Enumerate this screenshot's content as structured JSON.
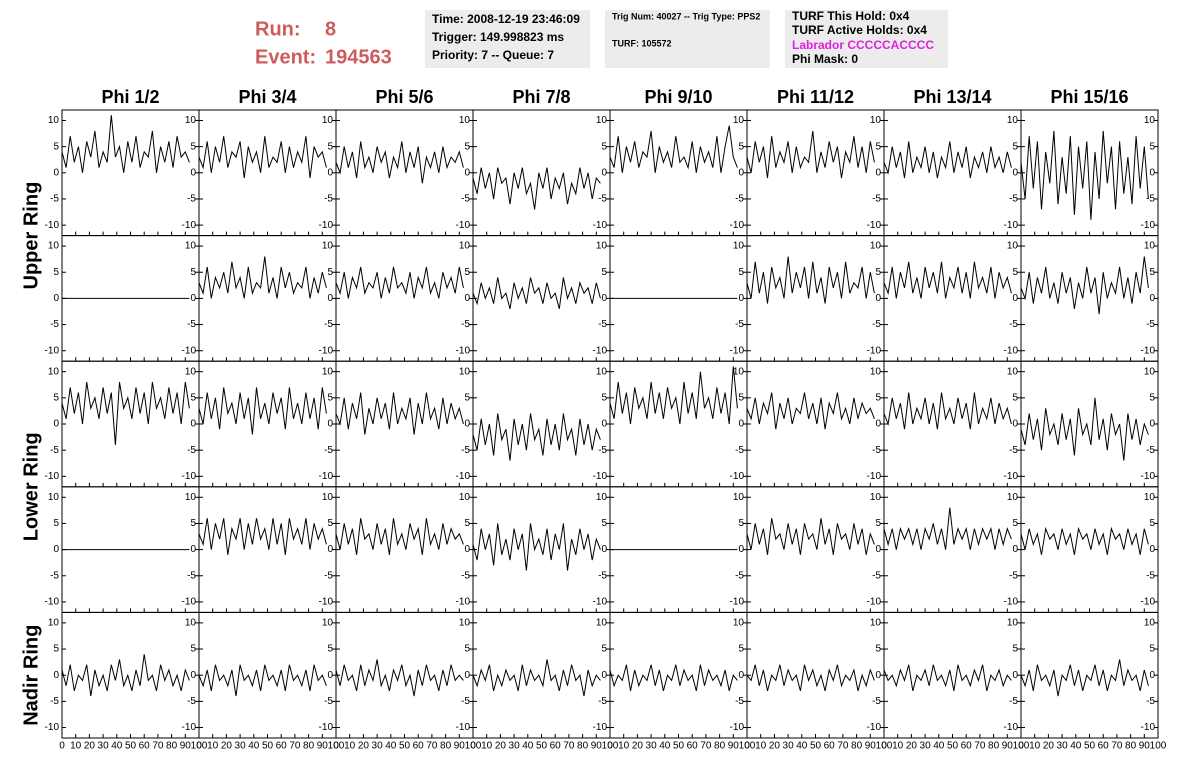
{
  "header": {
    "run_label": "Run:",
    "run": 8,
    "event_label": "Event:",
    "event": 194563,
    "info_boxes": [
      {
        "lines": [
          "Time: 2008-12-19 23:46:09",
          "Trigger: 149.998823 ms",
          "Priority: 7 -- Queue: 7"
        ]
      },
      {
        "lines": [
          "Trig Num: 40027 -- Trig Type: PPS2",
          "TURF: 105572"
        ]
      },
      {
        "lines": [
          "TURF This Hold: 0x4",
          "TURF Active Holds: 0x4",
          "Labrador CCCCCACCCC",
          "Phi Mask: 0"
        ]
      }
    ]
  },
  "chart_data": {
    "type": "line",
    "color": "#000000",
    "columns": [
      "Phi 1/2",
      "Phi 3/4",
      "Phi 5/6",
      "Phi 7/8",
      "Phi 9/10",
      "Phi 11/12",
      "Phi 13/14",
      "Phi 15/16"
    ],
    "ring_labels": [
      "Upper Ring",
      "Lower Ring",
      "Nadir Ring"
    ],
    "xlim": [
      0,
      100
    ],
    "ylim": [
      -12,
      12
    ],
    "xticks": [
      0,
      10,
      20,
      30,
      40,
      50,
      60,
      70,
      80,
      90,
      100
    ],
    "yticks": [
      -10,
      -5,
      0,
      5,
      10
    ],
    "x": [
      0,
      3,
      6,
      9,
      12,
      15,
      18,
      21,
      24,
      27,
      30,
      33,
      36,
      39,
      42,
      45,
      48,
      51,
      54,
      57,
      60,
      63,
      66,
      69,
      72,
      75,
      78,
      81,
      84,
      87,
      90,
      93
    ],
    "panels": [
      [
        [
          4,
          1,
          7,
          2,
          5,
          0,
          6,
          3,
          8,
          1,
          4,
          2,
          11,
          3,
          5,
          0,
          6,
          2,
          7,
          1,
          4,
          3,
          8,
          0,
          5,
          2,
          6,
          1,
          7,
          3,
          4,
          2
        ],
        [
          3,
          1,
          6,
          0,
          5,
          2,
          7,
          1,
          4,
          3,
          6,
          -1,
          5,
          2,
          4,
          0,
          7,
          1,
          3,
          2,
          6,
          0,
          5,
          1,
          4,
          2,
          7,
          -1,
          5,
          3,
          4,
          1
        ],
        [
          2,
          0,
          5,
          1,
          4,
          -1,
          6,
          1,
          3,
          0,
          5,
          2,
          4,
          -1,
          3,
          1,
          6,
          0,
          4,
          1,
          5,
          -2,
          3,
          1,
          4,
          0,
          5,
          1,
          3,
          2,
          4,
          1
        ],
        [
          -1,
          -4,
          1,
          -3,
          0,
          -5,
          1,
          -2,
          -1,
          -6,
          0,
          -3,
          1,
          -4,
          -2,
          -7,
          0,
          -3,
          1,
          -5,
          -1,
          -3,
          0,
          -6,
          -2,
          -4,
          1,
          -3,
          0,
          -5,
          -1,
          -2
        ],
        [
          3,
          1,
          7,
          0,
          5,
          2,
          6,
          1,
          4,
          3,
          8,
          0,
          5,
          2,
          4,
          1,
          7,
          2,
          3,
          1,
          6,
          0,
          5,
          2,
          4,
          1,
          7,
          0,
          5,
          9,
          3,
          1
        ],
        [
          3,
          0,
          6,
          2,
          5,
          -1,
          7,
          1,
          4,
          2,
          6,
          0,
          5,
          1,
          3,
          2,
          8,
          0,
          4,
          1,
          6,
          2,
          5,
          -1,
          4,
          2,
          7,
          1,
          5,
          0,
          6,
          2
        ],
        [
          2,
          0,
          5,
          1,
          4,
          -1,
          6,
          0,
          3,
          1,
          5,
          0,
          4,
          -1,
          3,
          1,
          6,
          0,
          4,
          1,
          5,
          -1,
          3,
          1,
          4,
          0,
          5,
          1,
          3,
          0,
          4,
          1
        ],
        [
          2,
          -5,
          7,
          -3,
          6,
          -7,
          4,
          -2,
          8,
          -6,
          3,
          -4,
          7,
          -8,
          5,
          -3,
          6,
          -9,
          4,
          -5,
          8,
          -2,
          5,
          -7,
          6,
          -4,
          3,
          -6,
          7,
          -3,
          5,
          -5
        ]
      ],
      [
        [
          0,
          0,
          0,
          0,
          0,
          0,
          0,
          0,
          0,
          0,
          0,
          0,
          0,
          0,
          0,
          0,
          0,
          0,
          0,
          0,
          0,
          0,
          0,
          0,
          0,
          0,
          0,
          0,
          0,
          0,
          0,
          0
        ],
        [
          3,
          1,
          6,
          0,
          4,
          2,
          5,
          1,
          7,
          2,
          4,
          0,
          6,
          1,
          3,
          2,
          8,
          1,
          4,
          0,
          6,
          2,
          5,
          1,
          3,
          2,
          6,
          0,
          4,
          1,
          5,
          2
        ],
        [
          3,
          1,
          5,
          0,
          4,
          2,
          6,
          1,
          3,
          2,
          5,
          0,
          4,
          1,
          6,
          2,
          3,
          1,
          5,
          0,
          4,
          2,
          6,
          1,
          3,
          0,
          5,
          2,
          4,
          1,
          6,
          2
        ],
        [
          1,
          -1,
          3,
          0,
          2,
          -1,
          4,
          0,
          1,
          -2,
          3,
          0,
          2,
          -1,
          4,
          1,
          2,
          -1,
          3,
          0,
          1,
          -2,
          4,
          0,
          2,
          -1,
          3,
          1,
          2,
          -1,
          3,
          0
        ],
        [
          0,
          0,
          0,
          0,
          0,
          0,
          0,
          0,
          0,
          0,
          0,
          0,
          0,
          0,
          0,
          0,
          0,
          0,
          0,
          0,
          0,
          0,
          0,
          0,
          0,
          0,
          0,
          0,
          0,
          0,
          0,
          0
        ],
        [
          3,
          0,
          7,
          1,
          5,
          -1,
          6,
          2,
          4,
          0,
          8,
          1,
          5,
          2,
          6,
          0,
          7,
          1,
          4,
          -1,
          6,
          2,
          5,
          0,
          7,
          1,
          3,
          2,
          6,
          0,
          5,
          1
        ],
        [
          3,
          1,
          6,
          0,
          5,
          2,
          7,
          1,
          4,
          0,
          6,
          2,
          5,
          1,
          7,
          0,
          4,
          2,
          6,
          1,
          5,
          0,
          7,
          2,
          4,
          1,
          6,
          0,
          5,
          2,
          4,
          1
        ],
        [
          2,
          0,
          5,
          -1,
          4,
          1,
          6,
          0,
          3,
          -1,
          5,
          1,
          4,
          -2,
          3,
          0,
          6,
          1,
          4,
          -3,
          5,
          0,
          3,
          1,
          6,
          0,
          4,
          -1,
          5,
          1,
          8,
          2
        ]
      ],
      [
        [
          4,
          1,
          7,
          2,
          6,
          0,
          8,
          3,
          5,
          1,
          7,
          2,
          6,
          -4,
          8,
          3,
          5,
          1,
          7,
          2,
          6,
          0,
          8,
          3,
          5,
          1,
          7,
          2,
          6,
          0,
          8,
          3
        ],
        [
          3,
          0,
          6,
          1,
          5,
          -1,
          7,
          2,
          4,
          0,
          6,
          1,
          5,
          -2,
          7,
          1,
          4,
          0,
          6,
          2,
          5,
          -1,
          7,
          1,
          4,
          0,
          6,
          1,
          5,
          -1,
          7,
          2
        ],
        [
          2,
          0,
          5,
          -1,
          4,
          1,
          6,
          -2,
          3,
          0,
          5,
          1,
          4,
          -1,
          6,
          0,
          3,
          1,
          5,
          -2,
          4,
          0,
          6,
          1,
          3,
          -1,
          5,
          0,
          4,
          1,
          3,
          0
        ],
        [
          -2,
          -5,
          1,
          -4,
          0,
          -6,
          2,
          -3,
          -1,
          -7,
          1,
          -4,
          0,
          -5,
          2,
          -3,
          -1,
          -6,
          1,
          -4,
          0,
          -5,
          2,
          -3,
          -1,
          -6,
          1,
          -4,
          0,
          -5,
          -1,
          -3
        ],
        [
          4,
          1,
          8,
          2,
          6,
          0,
          7,
          3,
          5,
          1,
          8,
          2,
          6,
          1,
          7,
          3,
          5,
          0,
          8,
          2,
          6,
          1,
          10,
          3,
          5,
          1,
          7,
          2,
          6,
          0,
          11,
          3
        ],
        [
          3,
          1,
          5,
          0,
          4,
          2,
          6,
          -1,
          4,
          1,
          5,
          0,
          3,
          2,
          6,
          1,
          4,
          0,
          5,
          -1,
          4,
          2,
          6,
          1,
          3,
          0,
          5,
          1,
          4,
          2,
          3,
          1
        ],
        [
          2,
          0,
          5,
          1,
          4,
          -1,
          6,
          0,
          3,
          1,
          5,
          0,
          4,
          -1,
          6,
          1,
          3,
          0,
          5,
          1,
          4,
          -1,
          6,
          0,
          3,
          1,
          5,
          0,
          4,
          1,
          3,
          0
        ],
        [
          -1,
          -4,
          2,
          -3,
          1,
          -5,
          3,
          -2,
          0,
          -4,
          2,
          -3,
          1,
          -6,
          3,
          -2,
          0,
          -4,
          5,
          -3,
          1,
          -5,
          2,
          -2,
          0,
          -7,
          2,
          -3,
          1,
          -4,
          0,
          -2
        ]
      ],
      [
        [
          0,
          0,
          0,
          0,
          0,
          0,
          0,
          0,
          0,
          0,
          0,
          0,
          0,
          0,
          0,
          0,
          0,
          0,
          0,
          0,
          0,
          0,
          0,
          0,
          0,
          0,
          0,
          0,
          0,
          0,
          0,
          0
        ],
        [
          3,
          1,
          6,
          0,
          5,
          2,
          6,
          -1,
          4,
          2,
          6,
          0,
          5,
          1,
          6,
          2,
          4,
          0,
          6,
          1,
          5,
          -1,
          6,
          2,
          4,
          1,
          6,
          0,
          5,
          2,
          4,
          1
        ],
        [
          3,
          0,
          5,
          1,
          4,
          -1,
          6,
          2,
          3,
          0,
          5,
          1,
          4,
          -1,
          6,
          1,
          3,
          0,
          5,
          2,
          4,
          -1,
          6,
          1,
          3,
          0,
          5,
          1,
          4,
          2,
          3,
          1
        ],
        [
          1,
          -2,
          4,
          0,
          3,
          -3,
          5,
          -1,
          2,
          -2,
          4,
          0,
          3,
          -4,
          5,
          0,
          2,
          -1,
          4,
          -2,
          3,
          0,
          5,
          -4,
          2,
          -1,
          4,
          0,
          3,
          -2,
          2,
          0
        ],
        [
          0,
          0,
          0,
          0,
          0,
          0,
          0,
          0,
          0,
          0,
          0,
          0,
          0,
          0,
          0,
          0,
          0,
          0,
          0,
          0,
          0,
          0,
          0,
          0,
          0,
          0,
          0,
          0,
          0,
          0,
          0,
          0
        ],
        [
          3,
          0,
          5,
          1,
          4,
          -1,
          6,
          2,
          3,
          0,
          5,
          1,
          4,
          -1,
          5,
          2,
          3,
          0,
          6,
          1,
          4,
          -1,
          5,
          2,
          3,
          0,
          5,
          1,
          4,
          -1,
          3,
          1
        ],
        [
          4,
          1,
          4,
          0,
          4,
          2,
          4,
          1,
          4,
          0,
          4,
          2,
          5,
          1,
          4,
          0,
          8,
          1,
          4,
          2,
          4,
          0,
          4,
          1,
          4,
          2,
          4,
          0,
          4,
          1,
          4,
          2
        ],
        [
          3,
          0,
          4,
          1,
          3,
          -1,
          4,
          2,
          3,
          0,
          4,
          1,
          3,
          -1,
          4,
          2,
          3,
          0,
          4,
          1,
          3,
          -1,
          4,
          2,
          3,
          0,
          4,
          1,
          3,
          -1,
          4,
          1
        ]
      ],
      [
        [
          1,
          -2,
          2,
          -3,
          0,
          -1,
          2,
          -4,
          1,
          -2,
          0,
          -3,
          2,
          -1,
          3,
          -2,
          0,
          -3,
          1,
          -2,
          4,
          -1,
          0,
          -3,
          2,
          -1,
          1,
          -2,
          0,
          -3,
          1,
          -1
        ],
        [
          0,
          -2,
          1,
          -3,
          2,
          -1,
          0,
          -2,
          1,
          -4,
          2,
          -1,
          0,
          -2,
          1,
          -3,
          2,
          -1,
          0,
          -2,
          1,
          -3,
          2,
          -1,
          0,
          -2,
          1,
          -3,
          2,
          -1,
          0,
          -2
        ],
        [
          1,
          -2,
          2,
          -1,
          0,
          -3,
          2,
          -2,
          1,
          -1,
          3,
          -2,
          0,
          -3,
          1,
          -1,
          2,
          -2,
          0,
          -4,
          1,
          -2,
          2,
          -1,
          0,
          -3,
          1,
          -2,
          2,
          -1,
          0,
          -1
        ],
        [
          0,
          -2,
          1,
          -1,
          2,
          -3,
          0,
          -2,
          1,
          -1,
          0,
          -3,
          2,
          -2,
          1,
          -1,
          0,
          -2,
          3,
          -1,
          0,
          -3,
          1,
          -2,
          2,
          -1,
          0,
          -4,
          1,
          -2,
          0,
          -1
        ],
        [
          1,
          -2,
          0,
          -1,
          2,
          -3,
          1,
          -2,
          0,
          -1,
          2,
          -2,
          1,
          -3,
          0,
          -1,
          2,
          -2,
          1,
          -1,
          0,
          -3,
          2,
          -2,
          1,
          -1,
          0,
          -2,
          1,
          -3,
          0,
          -1
        ],
        [
          0,
          -1,
          2,
          -2,
          1,
          -3,
          0,
          -1,
          2,
          -2,
          1,
          -1,
          0,
          -3,
          2,
          -1,
          1,
          -2,
          0,
          -3,
          1,
          -1,
          2,
          -2,
          0,
          -1,
          1,
          -3,
          0,
          -2,
          1,
          -1
        ],
        [
          1,
          -1,
          0,
          -2,
          1,
          -1,
          2,
          -3,
          0,
          -1,
          1,
          -2,
          2,
          -1,
          0,
          -2,
          1,
          -3,
          2,
          -1,
          0,
          -2,
          1,
          -1,
          2,
          -3,
          0,
          -1,
          1,
          -2,
          0,
          -1
        ],
        [
          0,
          -2,
          1,
          -3,
          2,
          -1,
          0,
          -2,
          1,
          -4,
          0,
          -1,
          2,
          -2,
          1,
          -3,
          0,
          -1,
          2,
          -2,
          1,
          -3,
          0,
          -1,
          3,
          -2,
          1,
          -1,
          0,
          -3,
          1,
          -2
        ]
      ]
    ]
  }
}
